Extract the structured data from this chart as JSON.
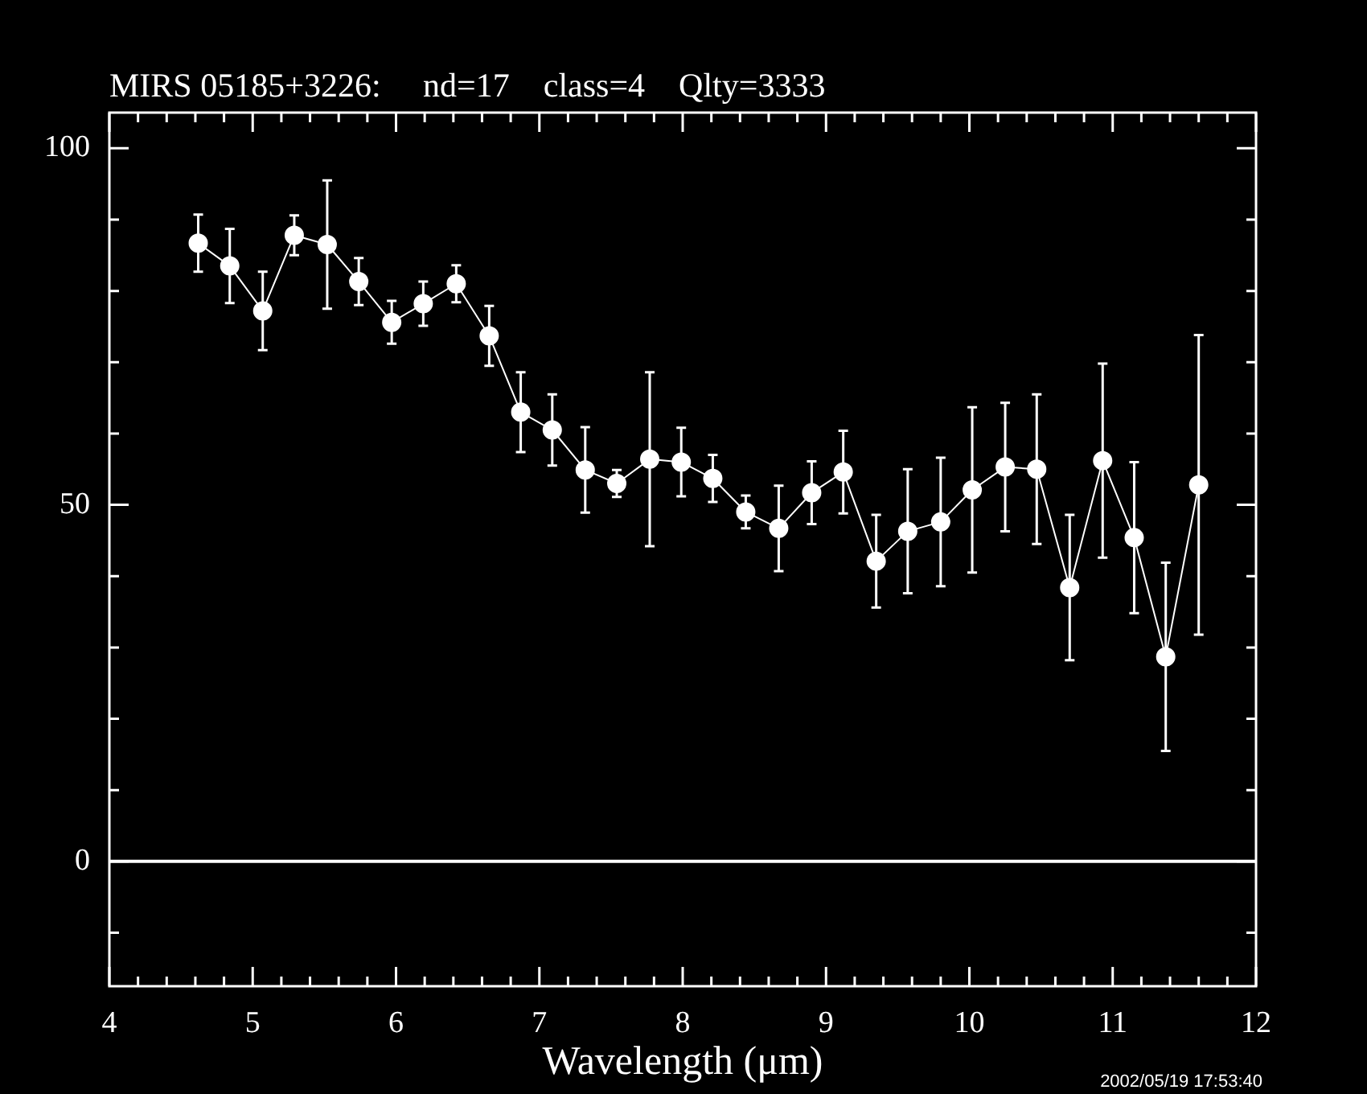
{
  "chart_data": {
    "type": "line",
    "title": "MIRS 05185+3226:     nd=17    class=4    Qlty=3333",
    "xlabel": "Wavelength (μm)",
    "annotations": [
      "2002/05/19 17:53:40"
    ],
    "x": [
      4.62,
      4.84,
      5.07,
      5.29,
      5.52,
      5.74,
      5.97,
      6.19,
      6.42,
      6.65,
      6.87,
      7.09,
      7.32,
      7.54,
      7.77,
      7.99,
      8.21,
      8.44,
      8.67,
      8.9,
      9.12,
      9.35,
      9.57,
      9.8,
      10.02,
      10.25,
      10.47,
      10.7,
      10.93,
      11.15,
      11.37,
      11.6
    ],
    "series": [
      {
        "color": "#ffffff",
        "values": [
          86.7,
          83.5,
          77.2,
          87.8,
          86.5,
          81.3,
          75.6,
          78.2,
          81.0,
          73.7,
          63.0,
          60.5,
          54.9,
          53.0,
          56.4,
          56.0,
          53.7,
          49.0,
          46.7,
          51.7,
          54.6,
          42.1,
          46.3,
          47.6,
          52.1,
          55.3,
          55.0,
          38.4,
          56.2,
          45.4,
          28.7,
          52.8
        ],
        "errors": [
          4,
          5.2,
          5.5,
          2.8,
          9,
          3.3,
          3,
          3.1,
          2.6,
          4.2,
          5.6,
          5,
          6,
          1.9,
          12.2,
          4.8,
          3.3,
          2.3,
          6,
          4.4,
          5.8,
          6.5,
          8.7,
          9,
          11.6,
          9,
          10.5,
          10.2,
          13.6,
          10.6,
          13.2,
          21
        ]
      }
    ],
    "marker": "circle",
    "line_style": "solid",
    "grid": false,
    "legend": false,
    "xlim": [
      4,
      12
    ],
    "xticks": [
      4,
      {
        "value": 4.2,
        "label": null
      },
      {
        "value": 4.4,
        "label": null
      },
      {
        "value": 4.6,
        "label": null
      },
      {
        "value": 4.8,
        "label": null
      },
      5,
      {
        "value": 5.2,
        "label": null
      },
      {
        "value": 5.4,
        "label": null
      },
      {
        "value": 5.6,
        "label": null
      },
      {
        "value": 5.8,
        "label": null
      },
      6,
      {
        "value": 6.2,
        "label": null
      },
      {
        "value": 6.4,
        "label": null
      },
      {
        "value": 6.6,
        "label": null
      },
      {
        "value": 6.8,
        "label": null
      },
      7,
      {
        "value": 7.2,
        "label": null
      },
      {
        "value": 7.4,
        "label": null
      },
      {
        "value": 7.6,
        "label": null
      },
      {
        "value": 7.8,
        "label": null
      },
      8,
      {
        "value": 8.2,
        "label": null
      },
      {
        "value": 8.4,
        "label": null
      },
      {
        "value": 8.6,
        "label": null
      },
      {
        "value": 8.8,
        "label": null
      },
      9,
      {
        "value": 9.2,
        "label": null
      },
      {
        "value": 9.4,
        "label": null
      },
      {
        "value": 9.6,
        "label": null
      },
      {
        "value": 9.8,
        "label": null
      },
      10,
      {
        "value": 10.2,
        "label": null
      },
      {
        "value": 10.4,
        "label": null
      },
      {
        "value": 10.6,
        "label": null
      },
      {
        "value": 10.8,
        "label": null
      },
      11,
      {
        "value": 11.2,
        "label": null
      },
      {
        "value": 11.4,
        "label": null
      },
      {
        "value": 11.6,
        "label": null
      },
      {
        "value": 11.8,
        "label": null
      },
      12
    ],
    "ylim": [
      -17.5,
      105
    ],
    "yticks": [
      {
        "value": -10,
        "label": null
      },
      0,
      {
        "value": 10,
        "label": null
      },
      {
        "value": 20,
        "label": null
      },
      {
        "value": 30,
        "label": null
      },
      {
        "value": 40,
        "label": null
      },
      50,
      {
        "value": 60,
        "label": null
      },
      {
        "value": 70,
        "label": null
      },
      {
        "value": 80,
        "label": null
      },
      {
        "value": 90,
        "label": null
      },
      100
    ],
    "ref_lines": [
      {
        "axis": "y",
        "value": 0,
        "color": "#ffffff"
      }
    ]
  }
}
